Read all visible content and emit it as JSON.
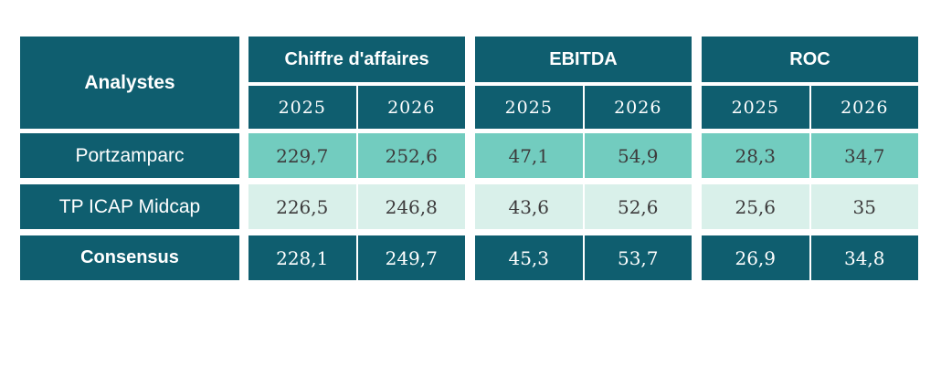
{
  "table": {
    "corner_label": "Analystes",
    "groups": [
      {
        "label": "Chiffre d'affaires",
        "years": [
          "2025",
          "2026"
        ]
      },
      {
        "label": "EBITDA",
        "years": [
          "2025",
          "2026"
        ]
      },
      {
        "label": "ROC",
        "years": [
          "2025",
          "2026"
        ]
      }
    ],
    "rows": [
      {
        "label": "Portzamparc",
        "values": [
          "229,7",
          "252,6",
          "47,1",
          "54,9",
          "28,3",
          "34,7"
        ]
      },
      {
        "label": "TP ICAP Midcap",
        "values": [
          "226,5",
          "246,8",
          "43,6",
          "52,6",
          "25,6",
          "35"
        ]
      },
      {
        "label": "Consensus",
        "values": [
          "228,1",
          "249,7",
          "45,3",
          "53,7",
          "26,9",
          "34,8"
        ]
      }
    ],
    "colors": {
      "header_dark_teal": "#0f5e6f",
      "row_highlight_teal": "#72ccbf",
      "row_pale_teal": "#d9f0ea",
      "value_text": "#3d3b3c",
      "header_text": "#ffffff",
      "background": "#ffffff"
    }
  },
  "chart_data": {
    "type": "table",
    "title": "",
    "column_groups": [
      "Chiffre d'affaires",
      "EBITDA",
      "ROC"
    ],
    "columns": [
      "Analystes",
      "Chiffre d'affaires 2025",
      "Chiffre d'affaires 2026",
      "EBITDA 2025",
      "EBITDA 2026",
      "ROC 2025",
      "ROC 2026"
    ],
    "rows": [
      [
        "Portzamparc",
        229.7,
        252.6,
        47.1,
        54.9,
        28.3,
        34.7
      ],
      [
        "TP ICAP Midcap",
        226.5,
        246.8,
        43.6,
        52.6,
        25.6,
        35
      ],
      [
        "Consensus",
        228.1,
        249.7,
        45.3,
        53.7,
        26.9,
        34.8
      ]
    ]
  }
}
